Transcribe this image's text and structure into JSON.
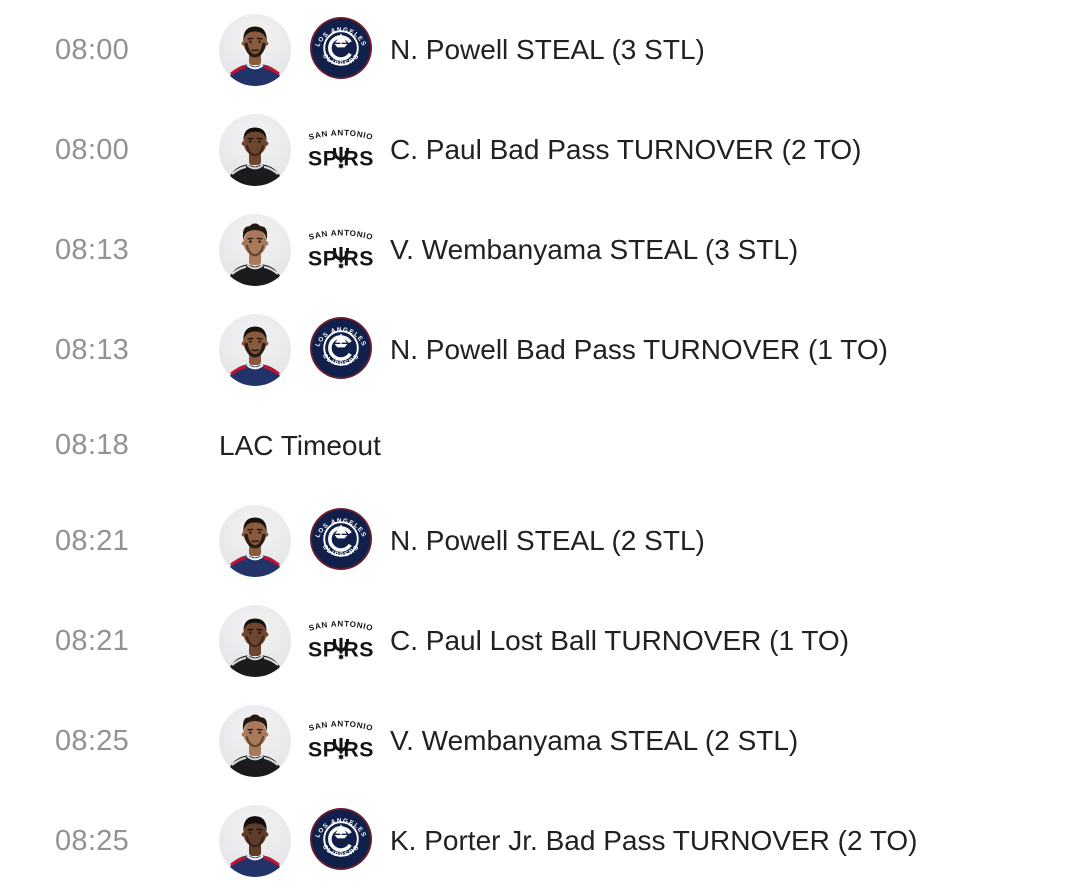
{
  "feed": {
    "rows": [
      {
        "type": "play",
        "time": "08:00",
        "team": "LAC",
        "player": "n_powell",
        "description": "N. Powell STEAL (3 STL)"
      },
      {
        "type": "play",
        "time": "08:00",
        "team": "SAS",
        "player": "c_paul",
        "description": "C. Paul Bad Pass TURNOVER (2 TO)"
      },
      {
        "type": "play",
        "time": "08:13",
        "team": "SAS",
        "player": "v_wembanyama",
        "description": "V. Wembanyama STEAL (3 STL)"
      },
      {
        "type": "play",
        "time": "08:13",
        "team": "LAC",
        "player": "n_powell",
        "description": "N. Powell Bad Pass TURNOVER (1 TO)"
      },
      {
        "type": "timeout",
        "time": "08:18",
        "description": "LAC Timeout"
      },
      {
        "type": "play",
        "time": "08:21",
        "team": "LAC",
        "player": "n_powell",
        "description": "N. Powell STEAL (2 STL)"
      },
      {
        "type": "play",
        "time": "08:21",
        "team": "SAS",
        "player": "c_paul",
        "description": "C. Paul Lost Ball TURNOVER (1 TO)"
      },
      {
        "type": "play",
        "time": "08:25",
        "team": "SAS",
        "player": "v_wembanyama",
        "description": "V. Wembanyama STEAL (2 STL)"
      },
      {
        "type": "play",
        "time": "08:25",
        "team": "LAC",
        "player": "k_porter_jr",
        "description": "K. Porter Jr. Bad Pass TURNOVER (2 TO)"
      }
    ],
    "teams": {
      "LAC": {
        "abbr": "LAC",
        "logo_text_top": "LOS ANGELES",
        "logo_text_bottom": "CLIPPERS",
        "navy": "#10204a",
        "ring_red": "#6f1d2d",
        "logo_white": "#ffffff",
        "jersey": "#22336a",
        "trim": "#c8102e"
      },
      "SAS": {
        "abbr": "SAS",
        "logo_text_top": "SAN ANTONIO",
        "logo_text_bottom": "SPURS",
        "black": "#141414",
        "jersey": "#1b1b1e",
        "trim": "#d6d8da"
      }
    },
    "players": {
      "n_powell": {
        "name": "N. Powell",
        "skin": "#8a5a3c",
        "hair": "#17120e",
        "hair_style": "short",
        "beard": "full"
      },
      "c_paul": {
        "name": "C. Paul",
        "skin": "#6e462f",
        "hair": "#120f0c",
        "hair_style": "buzz",
        "beard": "light"
      },
      "v_wembanyama": {
        "name": "V. Wembanyama",
        "skin": "#a9795a",
        "hair": "#241a12",
        "hair_style": "curly",
        "beard": "light"
      },
      "k_porter_jr": {
        "name": "K. Porter Jr.",
        "skin": "#5f3c29",
        "hair": "#100d0a",
        "hair_style": "hightop",
        "beard": "light"
      }
    },
    "colors": {
      "time_text": "#8f9296",
      "event_text": "#202124",
      "avatar_bg_light": "#f3f3f4",
      "avatar_bg_dark": "#e2e3e6",
      "background": "#ffffff"
    }
  }
}
